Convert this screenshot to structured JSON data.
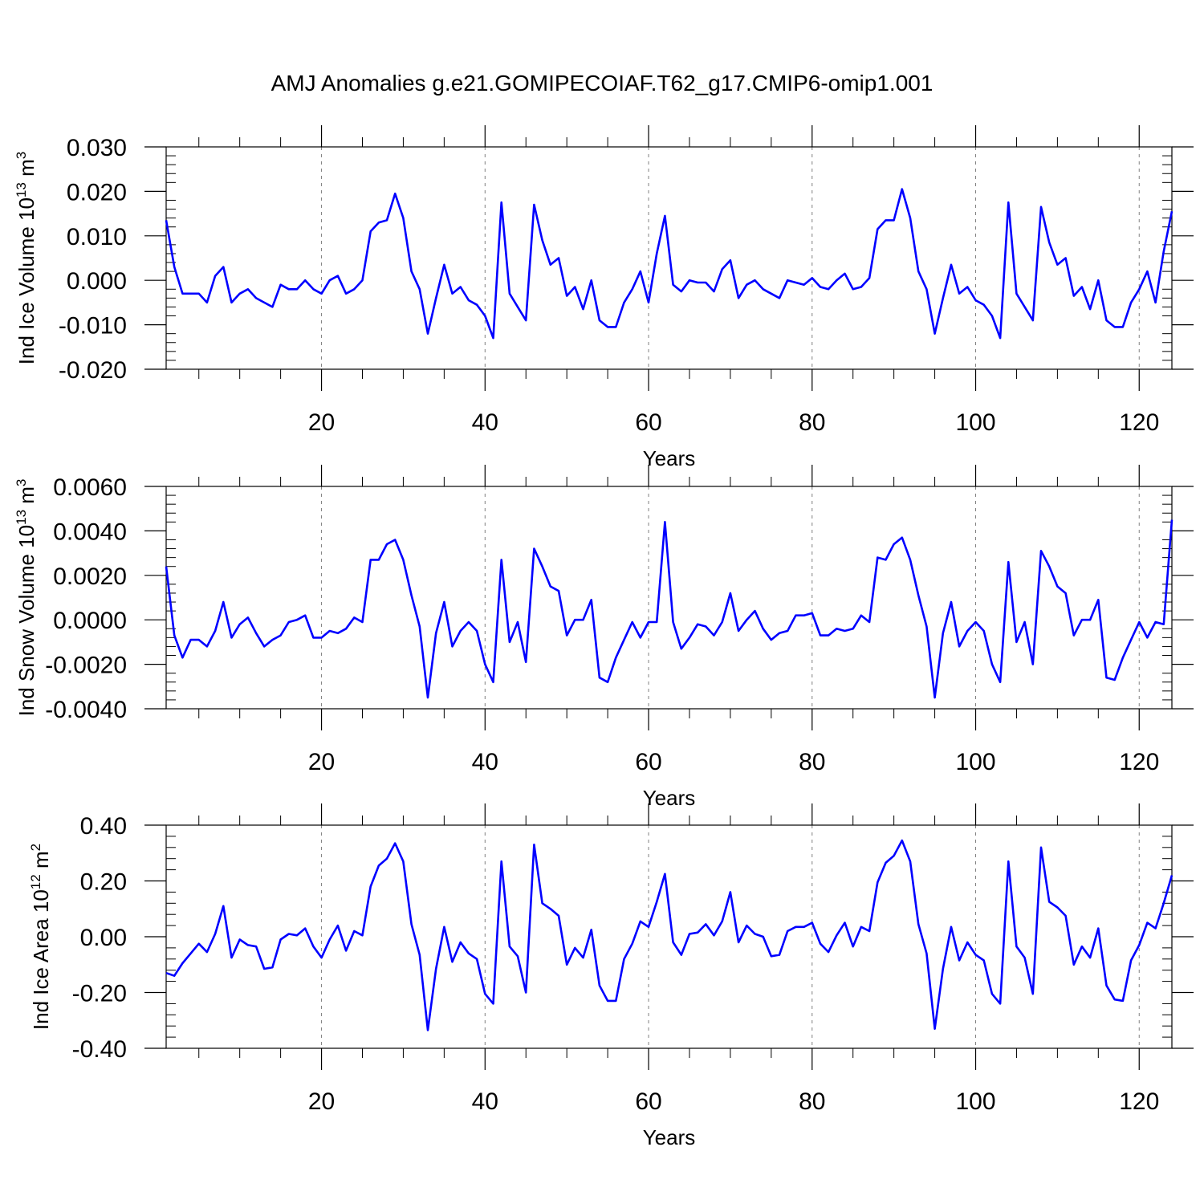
{
  "title": "AMJ Anomalies g.e21.GOMIPECOIAF.T62_g17.CMIP6-omip1.001",
  "colors": {
    "line": "#0000ff",
    "axis": "#000000",
    "grid": "#808080"
  },
  "chart_data": [
    {
      "type": "line",
      "ylabel": "Ind Ice Volume",
      "yunit": {
        "base": "10",
        "exp": "13",
        "unit": "m",
        "unit_exp": "3"
      },
      "xlabel": "Years",
      "xlim": [
        1,
        124
      ],
      "ylim": [
        -0.02,
        0.03
      ],
      "yticks": [
        "-0.020",
        "-0.010",
        "0.000",
        "0.010",
        "0.020",
        "0.030"
      ],
      "xticks": [
        "20",
        "40",
        "60",
        "80",
        "100",
        "120"
      ],
      "series": [
        {
          "name": "Ind Ice Volume",
          "values": [
            0.0135,
            0.003,
            -0.003,
            -0.003,
            -0.003,
            -0.005,
            0.001,
            0.003,
            -0.005,
            -0.003,
            -0.002,
            -0.004,
            -0.005,
            -0.006,
            -0.001,
            -0.002,
            -0.002,
            0.0,
            -0.002,
            -0.003,
            0.0,
            0.001,
            -0.003,
            -0.002,
            0.0,
            0.011,
            0.013,
            0.0135,
            0.0195,
            0.014,
            0.002,
            -0.002,
            -0.012,
            -0.004,
            0.0035,
            -0.003,
            -0.0015,
            -0.0045,
            -0.0055,
            -0.008,
            -0.013,
            0.0175,
            -0.003,
            -0.006,
            -0.009,
            0.017,
            0.009,
            0.0035,
            0.005,
            -0.0035,
            -0.0015,
            -0.0065,
            0.0,
            -0.009,
            -0.0105,
            -0.0105,
            -0.005,
            -0.002,
            0.002,
            -0.005,
            0.006,
            0.0145,
            -0.001,
            -0.0025,
            0.0,
            -0.0005,
            -0.0005,
            -0.0025,
            0.0025,
            0.0045,
            -0.004,
            -0.001,
            0.0,
            -0.002,
            -0.003,
            -0.004,
            0.0,
            -0.0005,
            -0.001,
            0.0005,
            -0.0015,
            -0.002,
            0.0,
            0.0015,
            -0.002,
            -0.0015,
            0.0005,
            0.0115,
            0.0135,
            0.0135,
            0.0205,
            0.014,
            0.002,
            -0.002,
            -0.012,
            -0.004,
            0.0035,
            -0.003,
            -0.0015,
            -0.0045,
            -0.0055,
            -0.008,
            -0.013,
            0.0175,
            -0.003,
            -0.006,
            -0.009,
            0.0165,
            0.0085,
            0.0035,
            0.005,
            -0.0035,
            -0.0015,
            -0.0065,
            0.0,
            -0.009,
            -0.0105,
            -0.0105,
            -0.005,
            -0.002,
            0.002,
            -0.005,
            0.0065,
            0.0155
          ]
        }
      ]
    },
    {
      "type": "line",
      "ylabel": "Ind Snow Volume",
      "yunit": {
        "base": "10",
        "exp": "13",
        "unit": "m",
        "unit_exp": "3"
      },
      "xlabel": "Years",
      "xlim": [
        1,
        124
      ],
      "ylim": [
        -0.004,
        0.006
      ],
      "yticks": [
        "-0.0040",
        "-0.0020",
        "0.0000",
        "0.0020",
        "0.0040",
        "0.0060"
      ],
      "xticks": [
        "20",
        "40",
        "60",
        "80",
        "100",
        "120"
      ],
      "series": [
        {
          "name": "Ind Snow Volume",
          "values": [
            0.0024,
            -0.0007,
            -0.0017,
            -0.0009,
            -0.0009,
            -0.0012,
            -0.0005,
            0.0008,
            -0.0008,
            -0.0002,
            0.0001,
            -0.0006,
            -0.0012,
            -0.0009,
            -0.0007,
            -0.0001,
            0.0,
            0.0002,
            -0.0008,
            -0.0008,
            -0.0005,
            -0.0006,
            -0.0004,
            0.0001,
            -0.0001,
            0.0027,
            0.0027,
            0.0034,
            0.0036,
            0.0027,
            0.0011,
            -0.0003,
            -0.0035,
            -0.0006,
            0.0008,
            -0.0012,
            -0.0005,
            -0.0001,
            -0.0005,
            -0.002,
            -0.0028,
            0.0027,
            -0.001,
            -0.0001,
            -0.0019,
            0.0032,
            0.0024,
            0.0015,
            0.0013,
            -0.0007,
            0.0,
            0.0,
            0.0009,
            -0.0026,
            -0.0028,
            -0.0017,
            -0.0009,
            -0.0001,
            -0.0008,
            -0.0001,
            -0.0001,
            0.0044,
            -0.0001,
            -0.0013,
            -0.0008,
            -0.0002,
            -0.0003,
            -0.0007,
            -0.0001,
            0.0012,
            -0.0005,
            0.0,
            0.0004,
            -0.0004,
            -0.0009,
            -0.0006,
            -0.0005,
            0.0002,
            0.0002,
            0.0003,
            -0.0007,
            -0.0007,
            -0.0004,
            -0.0005,
            -0.0004,
            0.0002,
            -0.0001,
            0.0028,
            0.0027,
            0.0034,
            0.0037,
            0.0027,
            0.0011,
            -0.0003,
            -0.0035,
            -0.0006,
            0.0008,
            -0.0012,
            -0.0005,
            -0.0001,
            -0.0005,
            -0.002,
            -0.0028,
            0.0026,
            -0.001,
            -0.0001,
            -0.002,
            0.0031,
            0.0024,
            0.0015,
            0.0012,
            -0.0007,
            0.0,
            0.0,
            0.0009,
            -0.0026,
            -0.0027,
            -0.0017,
            -0.0009,
            -0.0001,
            -0.0008,
            -0.0001,
            -0.0002,
            0.0045
          ]
        }
      ]
    },
    {
      "type": "line",
      "ylabel": "Ind Ice Area",
      "yunit": {
        "base": "10",
        "exp": "12",
        "unit": "m",
        "unit_exp": "2"
      },
      "xlabel": "Years",
      "xlim": [
        1,
        124
      ],
      "ylim": [
        -0.4,
        0.4
      ],
      "yticks": [
        "-0.40",
        "-0.20",
        "0.00",
        "0.20",
        "0.40"
      ],
      "xticks": [
        "20",
        "40",
        "60",
        "80",
        "100",
        "120"
      ],
      "series": [
        {
          "name": "Ind Ice Area",
          "values": [
            -0.13,
            -0.14,
            -0.095,
            -0.06,
            -0.025,
            -0.055,
            0.01,
            0.11,
            -0.075,
            -0.01,
            -0.03,
            -0.035,
            -0.115,
            -0.11,
            -0.01,
            0.01,
            0.005,
            0.03,
            -0.035,
            -0.075,
            -0.01,
            0.04,
            -0.05,
            0.02,
            0.005,
            0.18,
            0.255,
            0.28,
            0.335,
            0.27,
            0.045,
            -0.065,
            -0.335,
            -0.115,
            0.035,
            -0.09,
            -0.02,
            -0.06,
            -0.08,
            -0.205,
            -0.24,
            0.27,
            -0.035,
            -0.07,
            -0.2,
            0.33,
            0.12,
            0.1,
            0.075,
            -0.1,
            -0.04,
            -0.075,
            0.025,
            -0.175,
            -0.23,
            -0.23,
            -0.08,
            -0.025,
            0.055,
            0.035,
            0.125,
            0.225,
            -0.02,
            -0.065,
            0.01,
            0.015,
            0.045,
            0.005,
            0.055,
            0.16,
            -0.02,
            0.04,
            0.01,
            0.0,
            -0.07,
            -0.065,
            0.02,
            0.035,
            0.035,
            0.05,
            -0.025,
            -0.055,
            0.005,
            0.05,
            -0.035,
            0.035,
            0.02,
            0.195,
            0.265,
            0.29,
            0.345,
            0.27,
            0.045,
            -0.06,
            -0.33,
            -0.115,
            0.035,
            -0.085,
            -0.02,
            -0.065,
            -0.085,
            -0.205,
            -0.24,
            0.27,
            -0.035,
            -0.075,
            -0.205,
            0.32,
            0.125,
            0.105,
            0.075,
            -0.1,
            -0.035,
            -0.075,
            0.03,
            -0.175,
            -0.225,
            -0.23,
            -0.085,
            -0.03,
            0.05,
            0.03,
            0.12,
            0.22
          ]
        }
      ]
    }
  ]
}
